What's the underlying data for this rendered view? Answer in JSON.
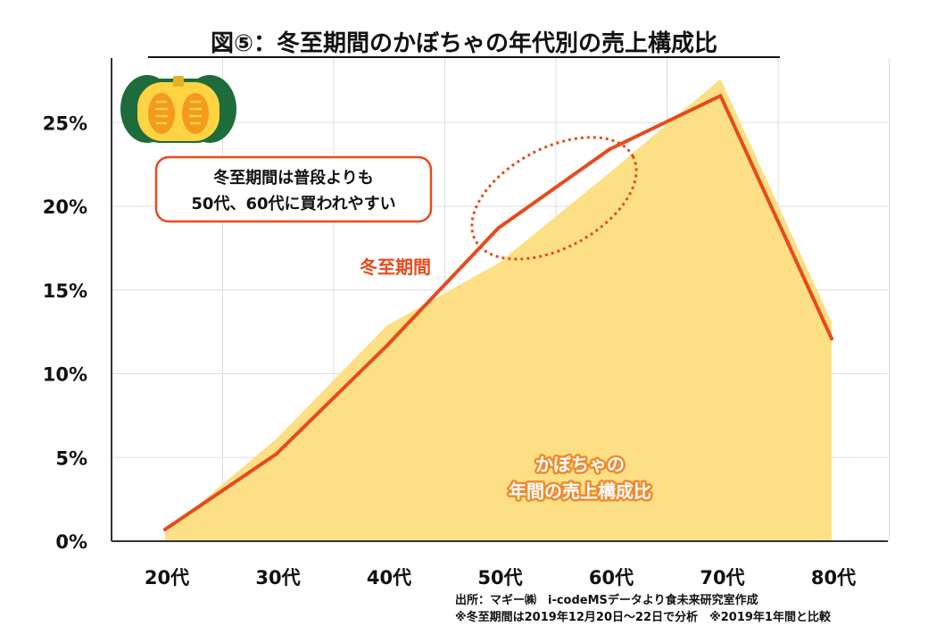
{
  "chart_data": {
    "type": "line",
    "title": "図⑤：冬至期間のかぼちゃの年代別の売上構成比",
    "categories": [
      "20代",
      "30代",
      "40代",
      "50代",
      "60代",
      "70代",
      "80代"
    ],
    "y_ticks": [
      "0%",
      "5%",
      "10%",
      "15%",
      "20%",
      "25%"
    ],
    "ylim": [
      0,
      27.5
    ],
    "series": [
      {
        "name": "かぼちゃの年間の売上構成比",
        "kind": "area",
        "values": [
          0.5,
          6.1,
          12.9,
          16.6,
          22.0,
          27.6,
          13.1
        ],
        "color": "#fde085"
      },
      {
        "name": "冬至期間",
        "kind": "line",
        "values": [
          0.7,
          5.2,
          11.7,
          18.7,
          23.4,
          26.6,
          12.1
        ],
        "color": "#e84a1b"
      }
    ],
    "labels": {
      "line_label": "冬至期間",
      "area_label_line1": "かぼちゃの",
      "area_label_line2": "年間の売上構成比"
    },
    "annotation": {
      "line1": "冬至期間は普段よりも",
      "line2": "50代、60代に買われやすい",
      "border_color": "#e84a1b"
    },
    "source": {
      "line1": "出所：マギー㈱　i-codeMSデータより食未来研究室作成",
      "line2": "※冬至期間は2019年12月20日～22日で分析　※2019年1年間と比較"
    }
  }
}
